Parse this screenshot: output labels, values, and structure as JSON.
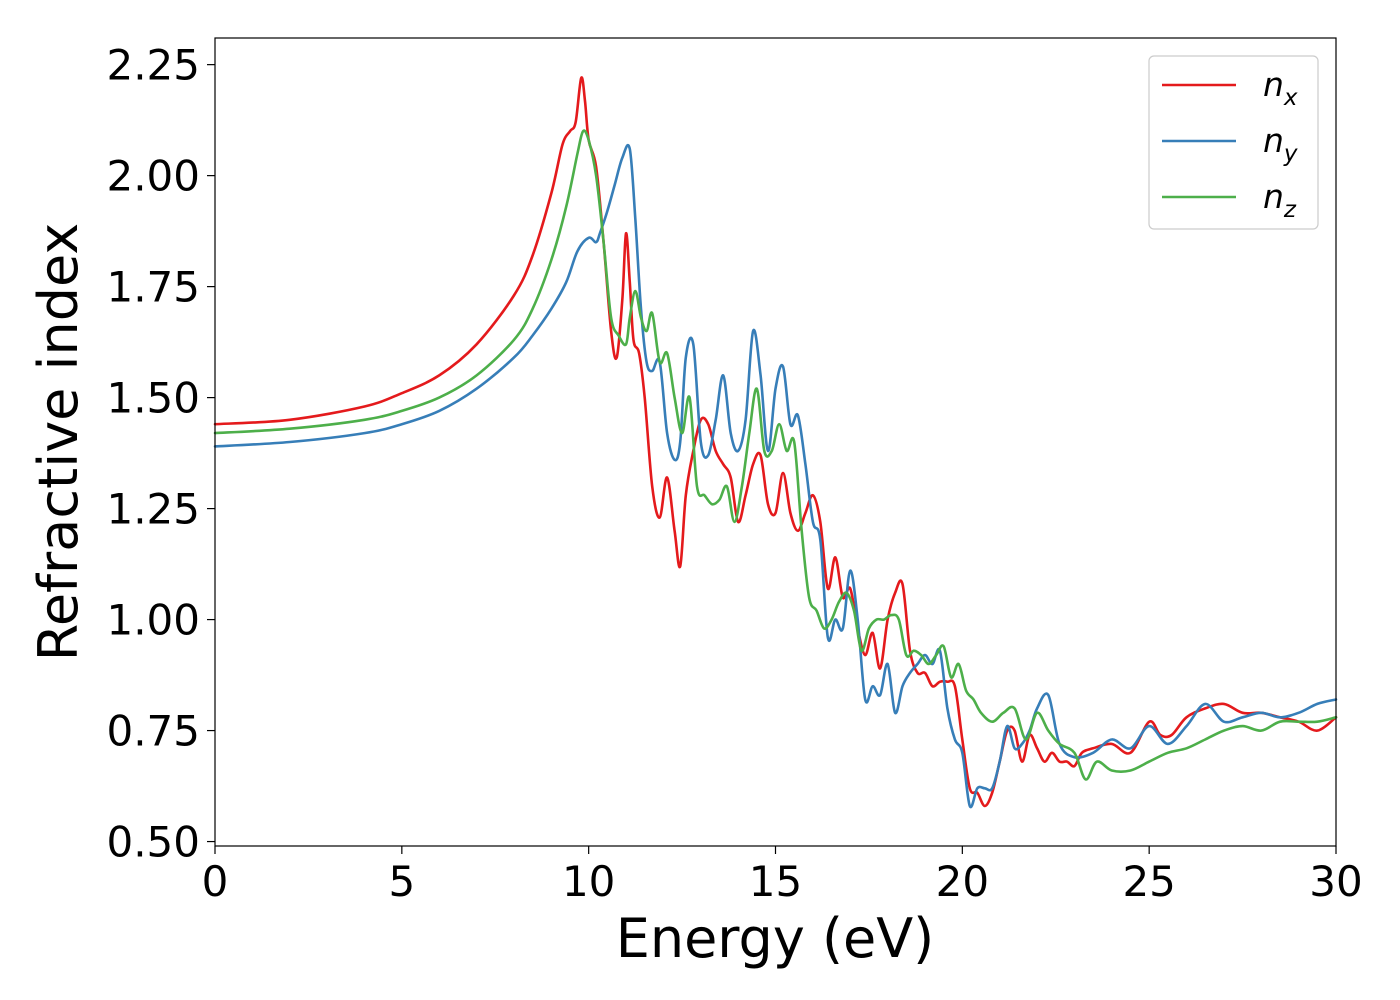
{
  "chart_data": {
    "type": "line",
    "xlabel": "Energy (eV)",
    "ylabel": "Refractive index",
    "xlim": [
      0,
      30
    ],
    "ylim": [
      0.49,
      2.31
    ],
    "xticks": [
      0,
      5,
      10,
      15,
      20,
      25,
      30
    ],
    "yticks": [
      0.5,
      0.75,
      1.0,
      1.25,
      1.5,
      1.75,
      2.0,
      2.25
    ],
    "xtick_labels": [
      "0",
      "5",
      "10",
      "15",
      "20",
      "25",
      "30"
    ],
    "ytick_labels": [
      "0.50",
      "0.75",
      "1.00",
      "1.25",
      "1.50",
      "1.75",
      "2.00",
      "2.25"
    ],
    "grid": false,
    "legend_position": "top-right",
    "series": [
      {
        "name": "n",
        "subscript": "x",
        "color": "#e41a1c",
        "x": [
          0,
          2,
          4,
          5,
          6,
          7,
          8,
          8.5,
          9,
          9.3,
          9.5,
          9.65,
          9.8,
          9.9,
          10.0,
          10.2,
          10.4,
          10.6,
          10.75,
          10.9,
          11.0,
          11.1,
          11.2,
          11.35,
          11.5,
          11.7,
          11.9,
          12.1,
          12.3,
          12.45,
          12.6,
          12.8,
          13.0,
          13.2,
          13.4,
          13.6,
          13.8,
          14.0,
          14.2,
          14.4,
          14.6,
          14.8,
          15.0,
          15.2,
          15.4,
          15.6,
          15.8,
          16.0,
          16.2,
          16.4,
          16.6,
          16.8,
          17.0,
          17.2,
          17.4,
          17.6,
          17.8,
          18.0,
          18.2,
          18.4,
          18.6,
          18.8,
          19.0,
          19.2,
          19.4,
          19.6,
          19.8,
          20.0,
          20.2,
          20.4,
          20.6,
          20.8,
          21.0,
          21.2,
          21.4,
          21.6,
          21.8,
          22.0,
          22.2,
          22.4,
          22.6,
          22.8,
          23.0,
          23.2,
          23.5,
          24.0,
          24.5,
          25.0,
          25.3,
          25.6,
          26.0,
          26.5,
          27.0,
          27.5,
          28.0,
          28.5,
          29.0,
          29.5,
          30.0
        ],
        "y": [
          1.44,
          1.45,
          1.48,
          1.51,
          1.55,
          1.62,
          1.73,
          1.82,
          1.96,
          2.07,
          2.1,
          2.12,
          2.22,
          2.17,
          2.08,
          2.02,
          1.85,
          1.65,
          1.59,
          1.72,
          1.87,
          1.76,
          1.63,
          1.6,
          1.5,
          1.3,
          1.23,
          1.32,
          1.2,
          1.12,
          1.28,
          1.38,
          1.45,
          1.44,
          1.38,
          1.35,
          1.32,
          1.22,
          1.28,
          1.35,
          1.37,
          1.26,
          1.24,
          1.33,
          1.24,
          1.2,
          1.24,
          1.28,
          1.22,
          1.07,
          1.14,
          1.05,
          1.07,
          0.98,
          0.92,
          0.97,
          0.89,
          1.0,
          1.06,
          1.08,
          0.93,
          0.88,
          0.88,
          0.85,
          0.86,
          0.86,
          0.85,
          0.73,
          0.62,
          0.61,
          0.58,
          0.61,
          0.68,
          0.75,
          0.75,
          0.68,
          0.74,
          0.71,
          0.68,
          0.7,
          0.68,
          0.68,
          0.67,
          0.7,
          0.71,
          0.72,
          0.7,
          0.77,
          0.74,
          0.74,
          0.78,
          0.8,
          0.81,
          0.79,
          0.79,
          0.78,
          0.77,
          0.75,
          0.78
        ]
      },
      {
        "name": "n",
        "subscript": "y",
        "color": "#377eb8",
        "x": [
          0,
          2,
          4,
          5,
          6,
          7,
          8,
          8.5,
          9,
          9.4,
          9.7,
          10.0,
          10.2,
          10.3,
          10.5,
          10.7,
          10.9,
          11.1,
          11.25,
          11.4,
          11.55,
          11.7,
          11.9,
          12.1,
          12.3,
          12.45,
          12.6,
          12.8,
          13.0,
          13.2,
          13.4,
          13.6,
          13.8,
          14.0,
          14.2,
          14.4,
          14.6,
          14.8,
          15.0,
          15.2,
          15.4,
          15.6,
          15.8,
          16.0,
          16.2,
          16.4,
          16.6,
          16.8,
          17.0,
          17.2,
          17.4,
          17.6,
          17.8,
          18.0,
          18.2,
          18.4,
          18.6,
          18.8,
          19.0,
          19.2,
          19.4,
          19.6,
          19.8,
          20.0,
          20.2,
          20.4,
          20.6,
          20.8,
          21.0,
          21.2,
          21.4,
          21.6,
          21.8,
          22.0,
          22.3,
          22.6,
          23.0,
          23.5,
          24.0,
          24.5,
          25.0,
          25.5,
          26.0,
          26.5,
          27.0,
          27.5,
          28.0,
          28.5,
          29.0,
          29.5,
          30.0
        ],
        "y": [
          1.39,
          1.4,
          1.42,
          1.44,
          1.47,
          1.52,
          1.59,
          1.64,
          1.7,
          1.76,
          1.83,
          1.86,
          1.85,
          1.87,
          1.92,
          1.98,
          2.04,
          2.06,
          1.9,
          1.7,
          1.58,
          1.56,
          1.58,
          1.42,
          1.36,
          1.4,
          1.59,
          1.62,
          1.4,
          1.37,
          1.45,
          1.55,
          1.42,
          1.38,
          1.45,
          1.65,
          1.55,
          1.38,
          1.52,
          1.57,
          1.44,
          1.46,
          1.35,
          1.22,
          1.18,
          0.96,
          1.0,
          0.98,
          1.11,
          1.0,
          0.82,
          0.85,
          0.83,
          0.9,
          0.79,
          0.85,
          0.88,
          0.9,
          0.92,
          0.9,
          0.93,
          0.8,
          0.73,
          0.7,
          0.58,
          0.62,
          0.62,
          0.62,
          0.68,
          0.76,
          0.71,
          0.72,
          0.75,
          0.8,
          0.83,
          0.72,
          0.69,
          0.7,
          0.73,
          0.71,
          0.76,
          0.72,
          0.76,
          0.81,
          0.77,
          0.78,
          0.79,
          0.78,
          0.79,
          0.81,
          0.82
        ]
      },
      {
        "name": "n",
        "subscript": "z",
        "color": "#4daf4a",
        "x": [
          0,
          2,
          4,
          5,
          6,
          7,
          8,
          8.5,
          9,
          9.4,
          9.7,
          9.85,
          10.0,
          10.2,
          10.4,
          10.6,
          10.8,
          11.0,
          11.1,
          11.25,
          11.4,
          11.55,
          11.7,
          11.9,
          12.1,
          12.3,
          12.5,
          12.7,
          12.9,
          13.1,
          13.3,
          13.5,
          13.7,
          13.9,
          14.1,
          14.3,
          14.5,
          14.7,
          14.9,
          15.1,
          15.3,
          15.5,
          15.7,
          15.9,
          16.1,
          16.3,
          16.5,
          16.7,
          16.9,
          17.1,
          17.3,
          17.5,
          17.7,
          17.9,
          18.1,
          18.3,
          18.5,
          18.7,
          18.9,
          19.1,
          19.3,
          19.5,
          19.7,
          19.9,
          20.1,
          20.3,
          20.5,
          20.8,
          21.1,
          21.4,
          21.7,
          22.0,
          22.3,
          22.6,
          23.0,
          23.3,
          23.6,
          24.0,
          24.5,
          25.0,
          25.5,
          26.0,
          26.5,
          27.0,
          27.5,
          28.0,
          28.5,
          29.0,
          29.5,
          30.0
        ],
        "y": [
          1.42,
          1.43,
          1.45,
          1.47,
          1.5,
          1.55,
          1.63,
          1.7,
          1.81,
          1.93,
          2.05,
          2.1,
          2.08,
          2.0,
          1.85,
          1.68,
          1.64,
          1.62,
          1.68,
          1.74,
          1.68,
          1.65,
          1.69,
          1.58,
          1.6,
          1.5,
          1.42,
          1.5,
          1.3,
          1.28,
          1.26,
          1.27,
          1.3,
          1.22,
          1.3,
          1.42,
          1.52,
          1.38,
          1.38,
          1.44,
          1.38,
          1.4,
          1.2,
          1.05,
          1.02,
          0.98,
          1.0,
          1.04,
          1.06,
          1.02,
          0.93,
          0.98,
          1.0,
          1.0,
          1.01,
          1.0,
          0.92,
          0.93,
          0.92,
          0.9,
          0.92,
          0.94,
          0.87,
          0.9,
          0.84,
          0.82,
          0.79,
          0.77,
          0.79,
          0.8,
          0.73,
          0.79,
          0.75,
          0.72,
          0.7,
          0.64,
          0.68,
          0.66,
          0.66,
          0.68,
          0.7,
          0.71,
          0.73,
          0.75,
          0.76,
          0.75,
          0.77,
          0.77,
          0.77,
          0.78
        ]
      }
    ]
  }
}
